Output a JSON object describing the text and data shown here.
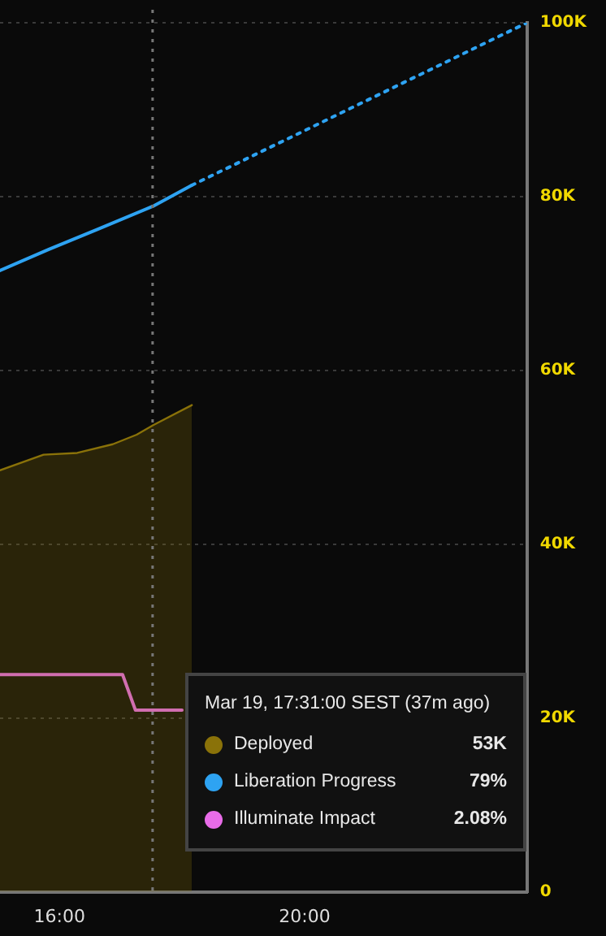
{
  "chart_data": {
    "type": "line",
    "xlim": [
      15.03,
      23.63
    ],
    "xticks": [
      {
        "value": 16,
        "label": "16:00"
      },
      {
        "value": 20,
        "label": "20:00"
      }
    ],
    "ylim": [
      0,
      100
    ],
    "yticks": [
      {
        "value": 0,
        "label": "0"
      },
      {
        "value": 20,
        "label": "20K"
      },
      {
        "value": 40,
        "label": "40K"
      },
      {
        "value": 60,
        "label": "60K"
      },
      {
        "value": 80,
        "label": "80K"
      },
      {
        "value": 100,
        "label": "100K"
      }
    ],
    "grid": "y",
    "legend": "bottom right",
    "marker": "none",
    "series": [
      {
        "name": "Deployed",
        "type": "area",
        "color": "#8a7209",
        "x": [
          15.03,
          15.74,
          16.29,
          16.87,
          17.26,
          17.53,
          18.16
        ],
        "values": [
          48.5,
          50.3,
          50.5,
          51.5,
          52.6,
          53.7,
          56
        ]
      },
      {
        "name": "Liberation Progress",
        "type": "line",
        "color": "#2ea3f2",
        "line_style": "solid",
        "x": [
          15.03,
          15.82,
          16.61,
          17.53,
          18.16
        ],
        "values": [
          71.5,
          73.9,
          76.2,
          78.9,
          81.3
        ]
      },
      {
        "type": "line",
        "color": "#2ea3f2",
        "line_style": "dotted",
        "x": [
          18.16,
          23.63
        ],
        "values": [
          81.3,
          100
        ]
      },
      {
        "name": "Illuminate Impact",
        "type": "line",
        "color": "#e86ce8",
        "line_style": "solid",
        "x": [
          15.03,
          17.03,
          17.24,
          18.0
        ],
        "values": [
          25,
          25,
          20.9,
          20.9
        ]
      }
    ],
    "ref_lines": [
      {
        "axis": "x",
        "value": 17.52,
        "color": "#777777",
        "line_style": "dotted"
      }
    ],
    "annotations": [
      "Mar 19, 17:31:00 SEST (37m ago)",
      "53K",
      "79%",
      "2.08%"
    ]
  }
}
